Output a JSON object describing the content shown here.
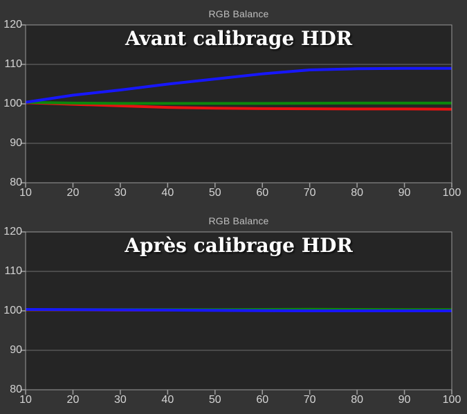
{
  "colors": {
    "background": "#343434",
    "plot_background": "#252525",
    "gridline": "#6f6f6f",
    "plot_border": "#9a9a9a",
    "tick_mark": "#a0a0a0",
    "tick_label": "#d4d4d4",
    "chart_title": "#bfbfbf",
    "annotation_text": "#ffffff",
    "series_red": "#e81212",
    "series_green": "#0c870c",
    "series_blue": "#1717ff"
  },
  "chart_data": [
    {
      "type": "line",
      "title": "RGB Balance",
      "annotation": "Avant calibrage HDR",
      "x": [
        10,
        20,
        30,
        40,
        50,
        60,
        70,
        80,
        90,
        100
      ],
      "xlim": [
        10,
        100
      ],
      "ylim": [
        80,
        120
      ],
      "xticks": [
        10,
        20,
        30,
        40,
        50,
        60,
        70,
        80,
        90,
        100
      ],
      "yticks": [
        80,
        90,
        100,
        110,
        120
      ],
      "grid": "horizontal-only",
      "legend": "none",
      "series": [
        {
          "name": "red",
          "color": "#e81212",
          "values": [
            100.3,
            99.9,
            99.5,
            99.1,
            98.9,
            98.8,
            98.75,
            98.7,
            98.7,
            98.65
          ]
        },
        {
          "name": "green",
          "color": "#0c870c",
          "values": [
            100.4,
            100.2,
            100.1,
            100.1,
            100.1,
            100.1,
            100.15,
            100.2,
            100.2,
            100.2
          ]
        },
        {
          "name": "blue",
          "color": "#1717ff",
          "values": [
            100.4,
            102.2,
            103.5,
            105.0,
            106.3,
            107.6,
            108.6,
            108.9,
            109.0,
            109.0
          ]
        }
      ]
    },
    {
      "type": "line",
      "title": "RGB Balance",
      "annotation": "Après calibrage HDR",
      "x": [
        10,
        20,
        30,
        40,
        50,
        60,
        70,
        80,
        90,
        100
      ],
      "xlim": [
        10,
        100
      ],
      "ylim": [
        80,
        120
      ],
      "xticks": [
        10,
        20,
        30,
        40,
        50,
        60,
        70,
        80,
        90,
        100
      ],
      "yticks": [
        80,
        90,
        100,
        110,
        120
      ],
      "grid": "horizontal-only",
      "legend": "none",
      "series": [
        {
          "name": "red",
          "color": "#e81212",
          "values": [
            100.25,
            100.25,
            100.2,
            100.2,
            100.2,
            100.25,
            100.3,
            100.1,
            100.1,
            100.1
          ]
        },
        {
          "name": "green",
          "color": "#0c870c",
          "values": [
            100.3,
            100.3,
            100.3,
            100.3,
            100.3,
            100.35,
            100.4,
            100.35,
            100.3,
            100.3
          ]
        },
        {
          "name": "blue",
          "color": "#1717ff",
          "values": [
            100.35,
            100.3,
            100.25,
            100.2,
            100.1,
            100.05,
            100.0,
            100.0,
            100.0,
            100.0
          ]
        }
      ]
    }
  ]
}
